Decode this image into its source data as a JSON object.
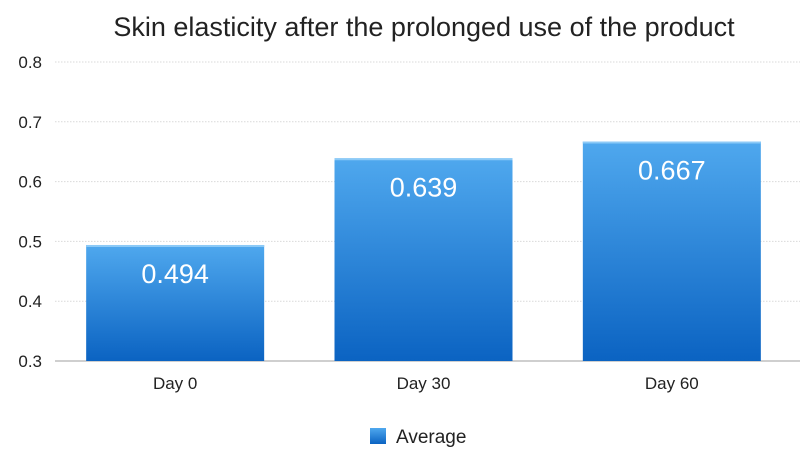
{
  "chart_data": {
    "type": "bar",
    "title": "Skin elasticity after the prolonged use of the product",
    "xlabel": "",
    "ylabel": "",
    "categories": [
      "Day 0",
      "Day 30",
      "Day 60"
    ],
    "series": [
      {
        "name": "Average",
        "values": [
          0.494,
          0.639,
          0.667
        ],
        "labels": [
          "0.494",
          "0.639",
          "0.667"
        ]
      }
    ],
    "ylim": [
      0.3,
      0.8
    ],
    "yticks": [
      "0.3",
      "0.4",
      "0.5",
      "0.6",
      "0.7",
      "0.8"
    ],
    "grid": true,
    "legend_position": "bottom",
    "colors": {
      "bar_top": "#4fa8ee",
      "bar_bottom": "#0b63c2",
      "grid": "#d9d9d9",
      "axis": "#bfbfbf",
      "text": "#222222",
      "value_label": "#ffffff"
    }
  }
}
